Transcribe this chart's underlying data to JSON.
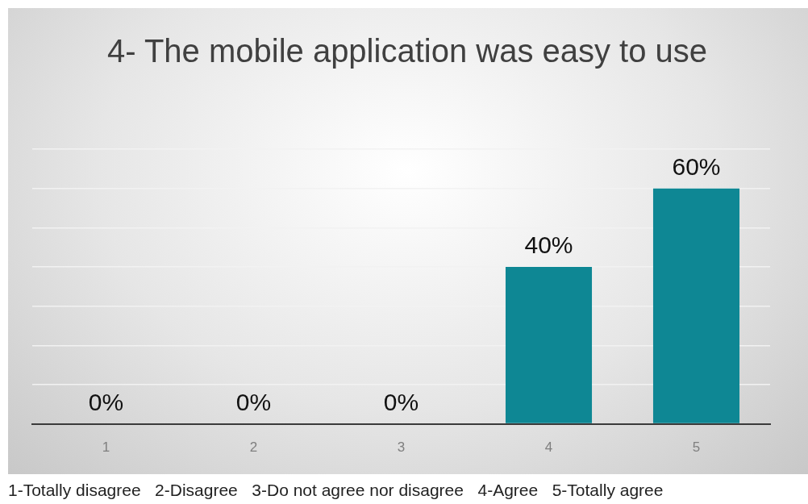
{
  "chart_data": {
    "type": "bar",
    "title": "4- The mobile application was easy to use",
    "categories": [
      "1",
      "2",
      "3",
      "4",
      "5"
    ],
    "values": [
      0,
      0,
      0,
      40,
      60
    ],
    "value_labels": [
      "0%",
      "0%",
      "0%",
      "40%",
      "60%"
    ],
    "color": "#0e8794",
    "ylim": [
      0,
      70
    ],
    "yticks": [
      {
        "value": 0,
        "label": null
      },
      {
        "value": 10,
        "label": null
      },
      {
        "value": 20,
        "label": null
      },
      {
        "value": 30,
        "label": null
      },
      {
        "value": 40,
        "label": null
      },
      {
        "value": 50,
        "label": null
      },
      {
        "value": 60,
        "label": null
      },
      {
        "value": 70,
        "label": null
      }
    ],
    "grid": "y",
    "tick_labels": "x",
    "annotations": [
      "1-Totally disagree   2-Disagree   3-Do not agree nor disagree   4-Agree   5-Totally agree"
    ]
  }
}
